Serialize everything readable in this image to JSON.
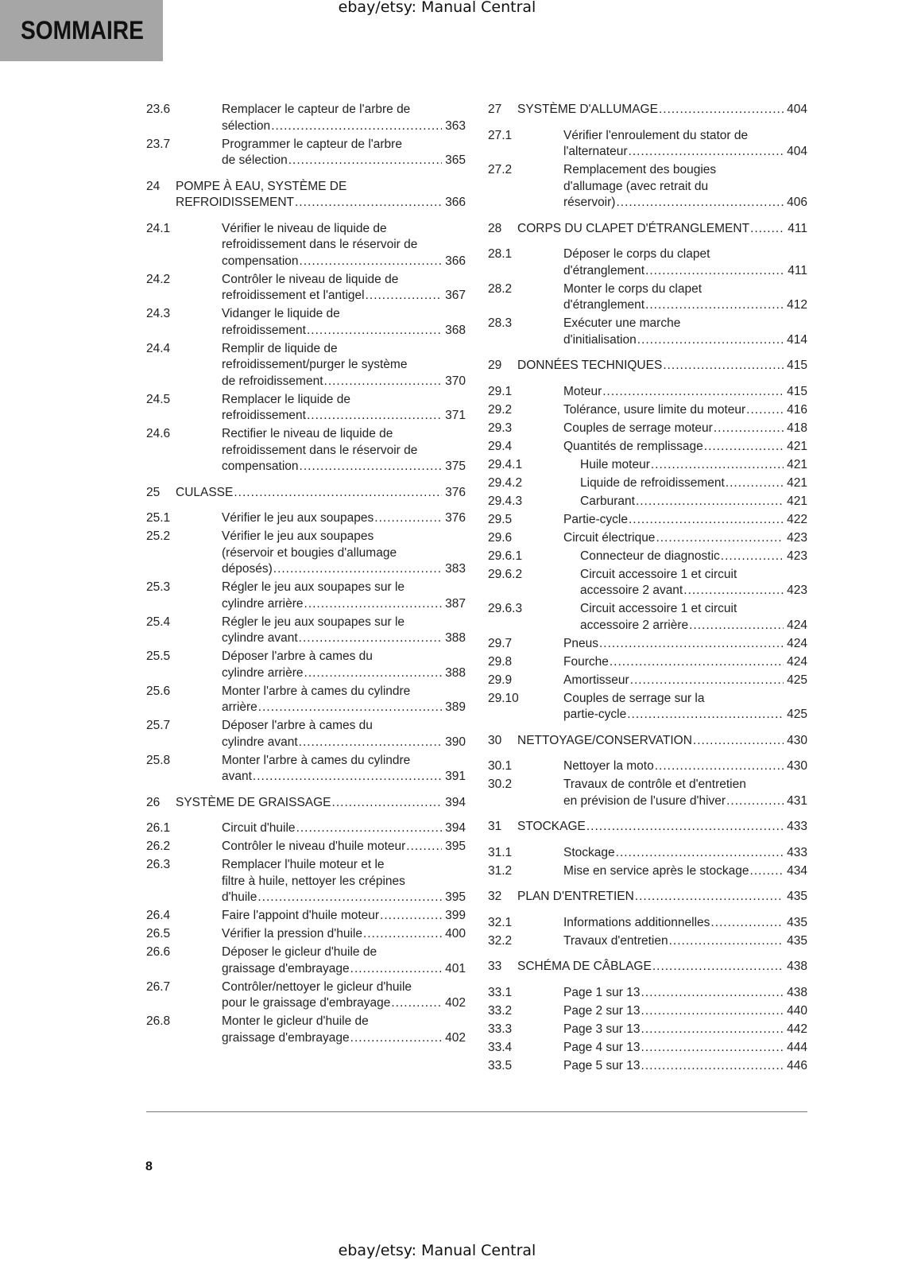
{
  "watermark": "ebay/etsy: Manual Central",
  "section_tab": "SOMMAIRE",
  "page_number": "8",
  "columns": [
    [
      {
        "entries": [
          {
            "level": 2,
            "num": "23.6",
            "lines": [
              "Remplacer le capteur de l'arbre de",
              "sélection"
            ],
            "page": "363"
          },
          {
            "level": 2,
            "num": "23.7",
            "lines": [
              "Programmer le capteur de l'arbre",
              "de sélection"
            ],
            "page": "365"
          }
        ]
      },
      {
        "entries": [
          {
            "level": 1,
            "num": "24",
            "lines": [
              "POMPE À EAU, SYSTÈME DE",
              "REFROIDISSEMENT"
            ],
            "page": "366"
          },
          {
            "level": 2,
            "num": "24.1",
            "lines": [
              "Vérifier le niveau de liquide de",
              "refroidissement dans le réservoir de",
              "compensation"
            ],
            "page": "366"
          },
          {
            "level": 2,
            "num": "24.2",
            "lines": [
              "Contrôler le niveau de liquide de",
              "refroidissement et l'antigel"
            ],
            "page": "367"
          },
          {
            "level": 2,
            "num": "24.3",
            "lines": [
              "Vidanger le liquide de",
              "refroidissement"
            ],
            "page": "368"
          },
          {
            "level": 2,
            "num": "24.4",
            "lines": [
              "Remplir de liquide de",
              "refroidissement/purger le système",
              "de refroidissement"
            ],
            "page": "370"
          },
          {
            "level": 2,
            "num": "24.5",
            "lines": [
              "Remplacer le liquide de",
              "refroidissement"
            ],
            "page": "371"
          },
          {
            "level": 2,
            "num": "24.6",
            "lines": [
              "Rectifier le niveau de liquide de",
              "refroidissement dans le réservoir de",
              "compensation"
            ],
            "page": "375"
          }
        ]
      },
      {
        "entries": [
          {
            "level": 1,
            "num": "25",
            "lines": [
              "CULASSE"
            ],
            "page": "376"
          },
          {
            "level": 2,
            "num": "25.1",
            "lines": [
              "Vérifier le jeu aux soupapes"
            ],
            "page": "376"
          },
          {
            "level": 2,
            "num": "25.2",
            "lines": [
              "Vérifier le jeu aux soupapes",
              "(réservoir et bougies d'allumage",
              "déposés)"
            ],
            "page": "383"
          },
          {
            "level": 2,
            "num": "25.3",
            "lines": [
              "Régler le jeu aux soupapes sur le",
              "cylindre arrière"
            ],
            "page": "387"
          },
          {
            "level": 2,
            "num": "25.4",
            "lines": [
              "Régler le jeu aux soupapes sur le",
              "cylindre avant"
            ],
            "page": "388"
          },
          {
            "level": 2,
            "num": "25.5",
            "lines": [
              "Déposer l'arbre à cames du",
              "cylindre arrière"
            ],
            "page": "388"
          },
          {
            "level": 2,
            "num": "25.6",
            "lines": [
              "Monter l'arbre à cames du cylindre",
              "arrière"
            ],
            "page": "389"
          },
          {
            "level": 2,
            "num": "25.7",
            "lines": [
              "Déposer l'arbre à cames du",
              "cylindre avant"
            ],
            "page": "390"
          },
          {
            "level": 2,
            "num": "25.8",
            "lines": [
              "Monter l'arbre à cames du cylindre",
              "avant"
            ],
            "page": "391"
          }
        ]
      },
      {
        "entries": [
          {
            "level": 1,
            "num": "26",
            "lines": [
              "SYSTÈME DE GRAISSAGE"
            ],
            "page": "394"
          },
          {
            "level": 2,
            "num": "26.1",
            "lines": [
              "Circuit d'huile"
            ],
            "page": "394"
          },
          {
            "level": 2,
            "num": "26.2",
            "lines": [
              "Contrôler le niveau d'huile moteur"
            ],
            "page": "395"
          },
          {
            "level": 2,
            "num": "26.3",
            "lines": [
              "Remplacer l'huile moteur et le",
              "filtre à huile, nettoyer les crépines",
              "d'huile"
            ],
            "page": "395"
          },
          {
            "level": 2,
            "num": "26.4",
            "lines": [
              "Faire l'appoint d'huile moteur"
            ],
            "page": "399"
          },
          {
            "level": 2,
            "num": "26.5",
            "lines": [
              "Vérifier la pression d'huile"
            ],
            "page": "400"
          },
          {
            "level": 2,
            "num": "26.6",
            "lines": [
              "Déposer le gicleur d'huile de",
              "graissage d'embrayage"
            ],
            "page": "401"
          },
          {
            "level": 2,
            "num": "26.7",
            "lines": [
              "Contrôler/nettoyer le gicleur d'huile",
              "pour le graissage d'embrayage"
            ],
            "page": "402"
          },
          {
            "level": 2,
            "num": "26.8",
            "lines": [
              "Monter le gicleur d'huile de",
              "graissage d'embrayage"
            ],
            "page": "402"
          }
        ]
      }
    ],
    [
      {
        "entries": [
          {
            "level": 1,
            "num": "27",
            "lines": [
              "SYSTÈME D'ALLUMAGE"
            ],
            "page": "404"
          },
          {
            "level": 2,
            "num": "27.1",
            "lines": [
              "Vérifier l'enroulement du stator de",
              "l'alternateur"
            ],
            "page": "404"
          },
          {
            "level": 2,
            "num": "27.2",
            "lines": [
              "Remplacement des bougies",
              "d'allumage (avec retrait du",
              "réservoir)"
            ],
            "page": "406"
          }
        ]
      },
      {
        "entries": [
          {
            "level": 1,
            "num": "28",
            "lines": [
              "CORPS DU CLAPET D'ÉTRANGLEMENT"
            ],
            "page": "411"
          },
          {
            "level": 2,
            "num": "28.1",
            "lines": [
              "Déposer le corps du clapet",
              "d'étranglement"
            ],
            "page": "411"
          },
          {
            "level": 2,
            "num": "28.2",
            "lines": [
              "Monter le corps du clapet",
              "d'étranglement"
            ],
            "page": "412"
          },
          {
            "level": 2,
            "num": "28.3",
            "lines": [
              "Exécuter une marche",
              "d'initialisation"
            ],
            "page": "414"
          }
        ]
      },
      {
        "entries": [
          {
            "level": 1,
            "num": "29",
            "lines": [
              "DONNÉES TECHNIQUES"
            ],
            "page": "415"
          },
          {
            "level": 2,
            "num": "29.1",
            "lines": [
              "Moteur"
            ],
            "page": "415"
          },
          {
            "level": 2,
            "num": "29.2",
            "lines": [
              "Tolérance, usure limite du moteur"
            ],
            "page": "416"
          },
          {
            "level": 2,
            "num": "29.3",
            "lines": [
              "Couples de serrage moteur"
            ],
            "page": "418"
          },
          {
            "level": 2,
            "num": "29.4",
            "lines": [
              "Quantités de remplissage"
            ],
            "page": "421"
          },
          {
            "level": 3,
            "num": "29.4.1",
            "lines": [
              "Huile moteur"
            ],
            "page": "421"
          },
          {
            "level": 3,
            "num": "29.4.2",
            "lines": [
              "Liquide de refroidissement"
            ],
            "page": "421"
          },
          {
            "level": 3,
            "num": "29.4.3",
            "lines": [
              "Carburant"
            ],
            "page": "421"
          },
          {
            "level": 2,
            "num": "29.5",
            "lines": [
              "Partie-cycle"
            ],
            "page": "422"
          },
          {
            "level": 2,
            "num": "29.6",
            "lines": [
              "Circuit électrique"
            ],
            "page": "423"
          },
          {
            "level": 3,
            "num": "29.6.1",
            "lines": [
              "Connecteur de diagnostic"
            ],
            "page": "423"
          },
          {
            "level": 3,
            "num": "29.6.2",
            "lines": [
              "Circuit accessoire 1 et circuit",
              "accessoire 2 avant"
            ],
            "page": "423"
          },
          {
            "level": 3,
            "num": "29.6.3",
            "lines": [
              "Circuit accessoire 1 et circuit",
              "accessoire 2 arrière"
            ],
            "page": "424"
          },
          {
            "level": 2,
            "num": "29.7",
            "lines": [
              "Pneus"
            ],
            "page": "424"
          },
          {
            "level": 2,
            "num": "29.8",
            "lines": [
              "Fourche"
            ],
            "page": "424"
          },
          {
            "level": 2,
            "num": "29.9",
            "lines": [
              "Amortisseur"
            ],
            "page": "425"
          },
          {
            "level": 2,
            "num": "29.10",
            "lines": [
              "Couples de serrage sur la",
              "partie-cycle"
            ],
            "page": "425"
          }
        ]
      },
      {
        "entries": [
          {
            "level": 1,
            "num": "30",
            "lines": [
              "NETTOYAGE/CONSERVATION"
            ],
            "page": "430"
          },
          {
            "level": 2,
            "num": "30.1",
            "lines": [
              "Nettoyer la moto"
            ],
            "page": "430"
          },
          {
            "level": 2,
            "num": "30.2",
            "lines": [
              "Travaux de contrôle et d'entretien",
              "en prévision de l'usure d'hiver"
            ],
            "page": "431"
          }
        ]
      },
      {
        "entries": [
          {
            "level": 1,
            "num": "31",
            "lines": [
              "STOCKAGE"
            ],
            "page": "433"
          },
          {
            "level": 2,
            "num": "31.1",
            "lines": [
              "Stockage"
            ],
            "page": "433"
          },
          {
            "level": 2,
            "num": "31.2",
            "lines": [
              "Mise en service après le stockage"
            ],
            "page": "434"
          }
        ]
      },
      {
        "entries": [
          {
            "level": 1,
            "num": "32",
            "lines": [
              "PLAN D'ENTRETIEN"
            ],
            "page": "435"
          },
          {
            "level": 2,
            "num": "32.1",
            "lines": [
              "Informations additionnelles"
            ],
            "page": "435"
          },
          {
            "level": 2,
            "num": "32.2",
            "lines": [
              "Travaux d'entretien"
            ],
            "page": "435"
          }
        ]
      },
      {
        "entries": [
          {
            "level": 1,
            "num": "33",
            "lines": [
              "SCHÉMA DE CÂBLAGE"
            ],
            "page": "438"
          },
          {
            "level": 2,
            "num": "33.1",
            "lines": [
              "Page 1 sur 13"
            ],
            "page": "438"
          },
          {
            "level": 2,
            "num": "33.2",
            "lines": [
              "Page 2 sur 13"
            ],
            "page": "440"
          },
          {
            "level": 2,
            "num": "33.3",
            "lines": [
              "Page 3 sur 13"
            ],
            "page": "442"
          },
          {
            "level": 2,
            "num": "33.4",
            "lines": [
              "Page 4 sur 13"
            ],
            "page": "444"
          },
          {
            "level": 2,
            "num": "33.5",
            "lines": [
              "Page 5 sur 13"
            ],
            "page": "446"
          }
        ]
      }
    ]
  ]
}
